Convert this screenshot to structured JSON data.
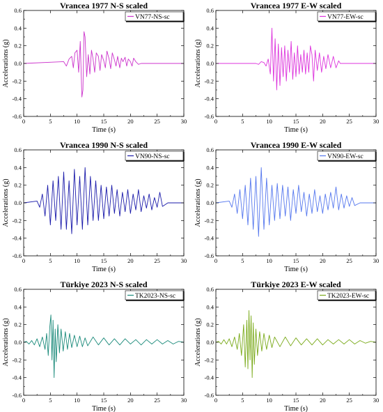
{
  "chart_data": [
    {
      "type": "line",
      "title": "Vrancea 1977 N-S scaled",
      "xlabel": "Time (s)",
      "ylabel": "Accelerations (g)",
      "xlim": [
        0,
        30
      ],
      "ylim": [
        -0.6,
        0.6
      ],
      "xticks": [
        0,
        5,
        10,
        15,
        20,
        25,
        30
      ],
      "yticks": [
        -0.6,
        -0.4,
        -0.2,
        0.0,
        0.2,
        0.4,
        0.6
      ],
      "grid": false,
      "legend": "top-right",
      "series": [
        {
          "name": "VN77-NS-sc",
          "color": "#cc33cc",
          "x": [
            0,
            7.5,
            8.0,
            8.5,
            9.0,
            9.3,
            9.6,
            10.0,
            10.3,
            10.6,
            10.9,
            11.1,
            11.3,
            11.5,
            11.8,
            12.1,
            12.4,
            12.7,
            13.0,
            13.3,
            13.6,
            14.0,
            14.3,
            14.6,
            15.0,
            15.3,
            15.6,
            16.0,
            16.3,
            16.6,
            17.0,
            17.3,
            17.6,
            18.0,
            18.3,
            18.6,
            19.0,
            19.3,
            19.6,
            20.0,
            20.3,
            20.6,
            21.0,
            21.5,
            22.0,
            30
          ],
          "y": [
            0.0,
            0.02,
            -0.03,
            0.05,
            0.08,
            -0.05,
            0.12,
            0.15,
            -0.1,
            0.25,
            -0.38,
            -0.3,
            0.36,
            0.3,
            -0.15,
            0.1,
            -0.12,
            0.15,
            0.05,
            -0.1,
            0.12,
            0.08,
            -0.08,
            0.1,
            0.03,
            -0.05,
            0.14,
            0.05,
            -0.06,
            0.12,
            0.04,
            -0.03,
            0.08,
            -0.05,
            0.06,
            0.02,
            0.07,
            -0.03,
            0.05,
            0.02,
            -0.03,
            0.06,
            0.02,
            -0.01,
            0.0,
            0.0
          ]
        }
      ]
    },
    {
      "type": "line",
      "title": "Vrancea 1977 E-W scaled",
      "xlabel": "Time (s)",
      "ylabel": "Accelerations (g)",
      "xlim": [
        0,
        30
      ],
      "ylim": [
        -0.6,
        0.6
      ],
      "xticks": [
        0,
        5,
        10,
        15,
        20,
        25,
        30
      ],
      "yticks": [
        -0.6,
        -0.4,
        -0.2,
        0.0,
        0.2,
        0.4,
        0.6
      ],
      "grid": false,
      "legend": "top-right",
      "series": [
        {
          "name": "VN77-EW-sc",
          "color": "#dd33dd",
          "x": [
            0,
            7.5,
            8.0,
            8.5,
            9.0,
            9.4,
            9.8,
            10.2,
            10.5,
            10.8,
            11.1,
            11.4,
            11.7,
            12.0,
            12.3,
            12.6,
            12.9,
            13.2,
            13.5,
            13.8,
            14.1,
            14.4,
            14.7,
            15.0,
            15.3,
            15.6,
            15.9,
            16.2,
            16.5,
            16.8,
            17.1,
            17.4,
            17.7,
            18.0,
            18.3,
            18.6,
            19.0,
            19.4,
            19.8,
            20.2,
            20.6,
            21.0,
            21.5,
            22.0,
            22.5,
            23.0,
            23.3,
            30
          ],
          "y": [
            0.0,
            0.0,
            -0.01,
            0.02,
            0.01,
            -0.03,
            0.05,
            -0.12,
            0.4,
            -0.2,
            0.28,
            -0.3,
            0.22,
            -0.25,
            0.18,
            -0.15,
            0.2,
            -0.2,
            0.15,
            -0.1,
            0.25,
            -0.18,
            0.12,
            -0.15,
            0.2,
            -0.12,
            0.1,
            -0.1,
            0.15,
            -0.12,
            0.12,
            -0.1,
            0.2,
            0.1,
            -0.2,
            0.15,
            -0.08,
            0.12,
            -0.1,
            0.08,
            -0.06,
            0.1,
            -0.05,
            0.08,
            -0.05,
            0.03,
            0.0,
            0.0
          ]
        }
      ]
    },
    {
      "type": "line",
      "title": "Vrancea 1990 N-S scaled",
      "xlabel": "Time (s)",
      "ylabel": "Accelerations (g)",
      "xlim": [
        0,
        30
      ],
      "ylim": [
        -0.6,
        0.6
      ],
      "xticks": [
        0,
        5,
        10,
        15,
        20,
        25,
        30
      ],
      "yticks": [
        -0.6,
        -0.4,
        -0.2,
        0.0,
        0.2,
        0.4,
        0.6
      ],
      "grid": false,
      "legend": "top-right",
      "series": [
        {
          "name": "VN90-NS-sc",
          "color": "#1a1aaa",
          "x": [
            0,
            2.5,
            3.0,
            3.5,
            4.0,
            4.5,
            5.0,
            5.5,
            6.0,
            6.5,
            7.0,
            7.5,
            8.0,
            8.5,
            9.0,
            9.5,
            10.0,
            10.5,
            11.0,
            11.5,
            12.0,
            12.5,
            13.0,
            13.5,
            14.0,
            14.5,
            15.0,
            15.5,
            16.0,
            16.5,
            17.0,
            17.5,
            18.0,
            18.5,
            19.0,
            19.5,
            20.0,
            20.5,
            21.0,
            21.5,
            22.0,
            22.5,
            23.0,
            23.5,
            24.0,
            24.5,
            25.0,
            25.5,
            26.0,
            27.0,
            30
          ],
          "y": [
            0.0,
            0.02,
            -0.05,
            0.1,
            -0.15,
            0.2,
            -0.25,
            0.25,
            -0.2,
            0.3,
            -0.3,
            0.35,
            -0.3,
            0.25,
            -0.35,
            0.38,
            -0.25,
            0.3,
            -0.3,
            0.4,
            -0.25,
            0.3,
            -0.2,
            0.25,
            -0.2,
            0.2,
            -0.18,
            0.18,
            -0.15,
            0.2,
            -0.12,
            0.15,
            -0.15,
            0.12,
            -0.1,
            0.15,
            -0.12,
            0.1,
            -0.08,
            0.15,
            -0.1,
            0.08,
            -0.06,
            0.1,
            -0.08,
            0.06,
            -0.05,
            0.12,
            -0.04,
            0.0,
            0.0
          ]
        }
      ]
    },
    {
      "type": "line",
      "title": "Vrancea 1990 E-W scaled",
      "xlabel": "Time (s)",
      "ylabel": "Accelerations (g)",
      "xlim": [
        0,
        30
      ],
      "ylim": [
        -0.6,
        0.6
      ],
      "xticks": [
        0,
        5,
        10,
        15,
        20,
        25,
        30
      ],
      "yticks": [
        -0.6,
        -0.4,
        -0.2,
        0.0,
        0.2,
        0.4,
        0.6
      ],
      "grid": false,
      "legend": "top-right",
      "series": [
        {
          "name": "VN90-EW-sc",
          "color": "#5577ee",
          "x": [
            0,
            2.5,
            3.0,
            3.5,
            4.0,
            4.5,
            5.0,
            5.5,
            6.0,
            6.5,
            7.0,
            7.5,
            8.0,
            8.5,
            9.0,
            9.5,
            10.0,
            10.5,
            11.0,
            11.5,
            12.0,
            12.5,
            13.0,
            13.5,
            14.0,
            14.5,
            15.0,
            15.5,
            16.0,
            16.5,
            17.0,
            17.5,
            18.0,
            18.5,
            19.0,
            19.5,
            20.0,
            20.5,
            21.0,
            21.5,
            22.0,
            22.5,
            23.0,
            23.5,
            24.0,
            24.5,
            25.0,
            25.5,
            26.0,
            27.0,
            30
          ],
          "y": [
            0.0,
            0.02,
            -0.05,
            0.1,
            -0.12,
            0.15,
            -0.18,
            0.2,
            -0.25,
            0.28,
            -0.3,
            0.3,
            -0.38,
            0.4,
            -0.3,
            0.28,
            -0.25,
            0.2,
            -0.2,
            0.22,
            -0.18,
            0.2,
            -0.15,
            0.18,
            -0.2,
            0.15,
            -0.12,
            0.2,
            -0.1,
            0.12,
            -0.15,
            0.1,
            -0.12,
            0.15,
            -0.1,
            0.08,
            -0.12,
            0.1,
            -0.08,
            0.12,
            -0.06,
            0.18,
            -0.08,
            0.1,
            -0.06,
            0.08,
            -0.04,
            0.06,
            -0.03,
            0.0,
            0.0
          ]
        }
      ]
    },
    {
      "type": "line",
      "title": "Türkiye 2023 N-S scaled",
      "xlabel": "Time (s)",
      "ylabel": "Accelerations (g)",
      "xlim": [
        0,
        30
      ],
      "ylim": [
        -0.6,
        0.6
      ],
      "xticks": [
        0,
        5,
        10,
        15,
        20,
        25,
        30
      ],
      "yticks": [
        -0.6,
        -0.4,
        -0.2,
        0.0,
        0.2,
        0.4,
        0.6
      ],
      "grid": false,
      "legend": "top-right",
      "series": [
        {
          "name": "TK2023-NS-sc",
          "color": "#1a8a7a",
          "x": [
            0,
            0.5,
            1.0,
            1.5,
            2.0,
            2.5,
            3.0,
            3.5,
            4.0,
            4.3,
            4.6,
            4.9,
            5.1,
            5.3,
            5.5,
            5.7,
            5.9,
            6.1,
            6.4,
            6.7,
            7.0,
            7.4,
            7.8,
            8.2,
            8.6,
            9.0,
            9.5,
            10.0,
            10.5,
            11.0,
            11.5,
            12.0,
            13.0,
            14.0,
            15.0,
            16.0,
            17.0,
            18.0,
            19.0,
            20.0,
            21.0,
            22.0,
            23.0,
            24.0,
            25.0,
            26.0,
            27.0,
            28.0,
            29.0,
            30
          ],
          "y": [
            0.0,
            0.01,
            -0.02,
            0.02,
            -0.03,
            0.04,
            -0.05,
            0.06,
            -0.08,
            0.1,
            -0.15,
            0.18,
            0.31,
            -0.2,
            0.25,
            -0.4,
            0.15,
            -0.22,
            0.2,
            -0.12,
            0.15,
            -0.1,
            0.12,
            -0.08,
            0.1,
            -0.06,
            0.08,
            -0.05,
            0.07,
            -0.05,
            0.05,
            -0.04,
            0.06,
            -0.03,
            0.05,
            -0.03,
            0.04,
            -0.03,
            0.04,
            -0.02,
            0.03,
            -0.03,
            0.03,
            -0.02,
            0.03,
            -0.02,
            0.02,
            -0.02,
            0.01,
            0.0
          ]
        }
      ]
    },
    {
      "type": "line",
      "title": "Türkiye 2023 E-W scaled",
      "xlabel": "Time (s)",
      "ylabel": "Accelerations (g)",
      "xlim": [
        0,
        30
      ],
      "ylim": [
        -0.6,
        0.6
      ],
      "xticks": [
        0,
        5,
        10,
        15,
        20,
        25,
        30
      ],
      "yticks": [
        -0.6,
        -0.4,
        -0.2,
        0.0,
        0.2,
        0.4,
        0.6
      ],
      "grid": false,
      "legend": "top-right",
      "series": [
        {
          "name": "TK2023-EW-sc",
          "color": "#7aaa1a",
          "x": [
            0,
            0.5,
            1.0,
            1.5,
            2.0,
            2.5,
            3.0,
            3.5,
            4.0,
            4.4,
            4.8,
            5.2,
            5.5,
            5.8,
            6.0,
            6.2,
            6.4,
            6.6,
            6.8,
            7.0,
            7.2,
            7.5,
            7.8,
            8.2,
            8.6,
            9.0,
            9.5,
            10.0,
            10.5,
            11.0,
            12.0,
            13.0,
            14.0,
            15.0,
            16.0,
            17.0,
            18.0,
            19.0,
            20.0,
            21.0,
            22.0,
            23.0,
            24.0,
            25.0,
            26.0,
            27.0,
            28.0,
            29.0,
            30
          ],
          "y": [
            0.0,
            0.01,
            -0.02,
            0.03,
            -0.02,
            0.04,
            -0.05,
            0.06,
            -0.08,
            0.1,
            -0.15,
            0.2,
            -0.28,
            0.25,
            -0.3,
            0.36,
            -0.2,
            0.3,
            -0.4,
            0.22,
            -0.25,
            0.15,
            -0.15,
            0.12,
            -0.1,
            0.1,
            -0.08,
            0.08,
            -0.06,
            0.06,
            -0.05,
            0.06,
            -0.04,
            0.05,
            -0.03,
            0.04,
            -0.03,
            0.04,
            -0.03,
            0.03,
            -0.02,
            0.03,
            -0.02,
            0.03,
            -0.02,
            0.02,
            -0.01,
            0.01,
            0.0
          ]
        }
      ]
    }
  ]
}
